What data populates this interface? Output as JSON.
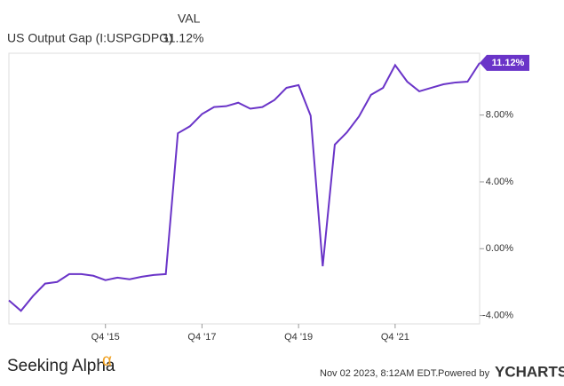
{
  "chart_data": {
    "type": "line",
    "column_header": "VAL",
    "series": [
      {
        "name": "US Output Gap (I:USPGDPG)",
        "color": "#6a34c8",
        "current_label": "11.12%",
        "values": [
          -3.09,
          -3.72,
          -2.83,
          -2.09,
          -1.99,
          -1.52,
          -1.52,
          -1.62,
          -1.88,
          -1.73,
          -1.83,
          -1.68,
          -1.57,
          -1.52,
          6.91,
          7.33,
          8.06,
          8.48,
          8.53,
          8.74,
          8.38,
          8.48,
          8.9,
          9.63,
          9.79,
          7.96,
          -1.05,
          6.23,
          6.96,
          7.91,
          9.21,
          9.63,
          10.99,
          10.0,
          9.42,
          9.63,
          9.84,
          9.95,
          10.0,
          11.12
        ],
        "value_labels": [
          null,
          null,
          null,
          null,
          null,
          null,
          null,
          null,
          null,
          null,
          null,
          null,
          null,
          null,
          null,
          null,
          null,
          null,
          null,
          null,
          null,
          null,
          null,
          null,
          null,
          null,
          null,
          null,
          null,
          null,
          null,
          null,
          null,
          null,
          null,
          null,
          null,
          null,
          null,
          "11.12%"
        ]
      }
    ],
    "categories": [
      null,
      null,
      null,
      null,
      null,
      null,
      null,
      null,
      "Q4 '15",
      null,
      null,
      null,
      null,
      null,
      null,
      null,
      "Q4 '17",
      null,
      null,
      null,
      null,
      null,
      null,
      null,
      "Q4 '19",
      null,
      null,
      null,
      null,
      null,
      null,
      null,
      "Q4 '21",
      null,
      null,
      null,
      null,
      null,
      null,
      null
    ],
    "ylim": [
      -4.5,
      11.7
    ],
    "yticks": [
      {
        "value": -4,
        "label": "-4.00%"
      },
      {
        "value": 0,
        "label": "0.00%"
      },
      {
        "value": 4,
        "label": "4.00%"
      },
      {
        "value": 8,
        "label": "8.00%"
      }
    ],
    "grid": false
  },
  "footer": {
    "brand": "Seeking Alpha",
    "brand_mark": "α",
    "timestamp": "Nov 02 2023, 8:12AM EDT.",
    "powered": "Powered by",
    "provider": "YCHARTS"
  }
}
